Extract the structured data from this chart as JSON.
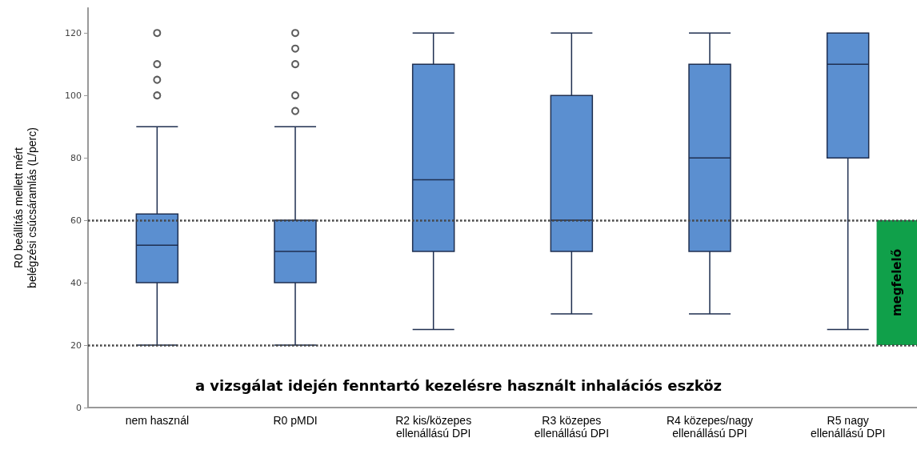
{
  "chart_data": {
    "type": "box",
    "xlabel": "a vizsgálat idején fenntartó kezelésre használt inhalációs eszköz",
    "ylabel": "R0 beállítás mellett mért\nbelégzési csúcsáramlás (L/perc)",
    "categories": [
      "nem használ",
      "R0 pMDI",
      "R2 kis/közepes\nellenállású DPI",
      "R3 közepes\nellenállású DPI",
      "R4 közepes/nagy\nellenállású DPI",
      "R5 nagy\nellenállású DPI"
    ],
    "series": [
      {
        "color": "#5b8fd0",
        "boxes": [
          {
            "low": 20,
            "q1": 40,
            "median": 52,
            "q3": 62,
            "high": 90,
            "outliers": [
              100,
              105,
              110,
              120
            ]
          },
          {
            "low": 20,
            "q1": 40,
            "median": 50,
            "q3": 60,
            "high": 90,
            "outliers": [
              95,
              100,
              110,
              115,
              120
            ]
          },
          {
            "low": 25,
            "q1": 50,
            "median": 73,
            "q3": 110,
            "high": 120
          },
          {
            "low": 30,
            "q1": 50,
            "median": 60,
            "q3": 100,
            "high": 120
          },
          {
            "low": 30,
            "q1": 50,
            "median": 80,
            "q3": 110,
            "high": 120
          },
          {
            "low": 25,
            "q1": 80,
            "median": 110,
            "q3": 120,
            "high": 120
          }
        ]
      }
    ],
    "ylim": [
      0,
      128
    ],
    "yticks": [
      0,
      20,
      40,
      60,
      80,
      100,
      120
    ],
    "marker": "circle",
    "ref_lines": [
      {
        "axis": "y",
        "value": 60,
        "line_style": "dotted",
        "color": "#444444"
      },
      {
        "axis": "y",
        "value": 20,
        "line_style": "dotted",
        "color": "#444444"
      }
    ],
    "bands": [
      {
        "axis": "y",
        "from": 20,
        "to": 60,
        "label": "megfelelő",
        "color": "#10a04a"
      }
    ]
  }
}
